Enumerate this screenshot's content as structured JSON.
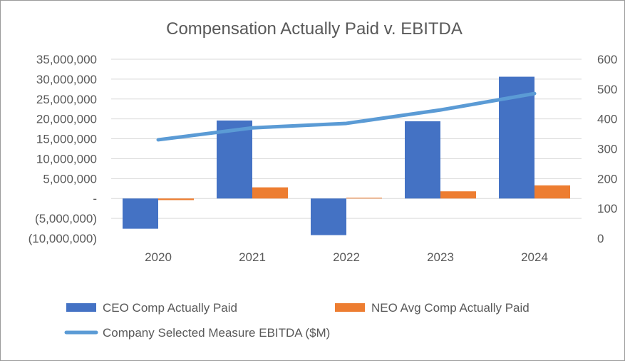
{
  "chart_data": {
    "type": "bar",
    "title": "Compensation Actually Paid v. EBITDA",
    "categories": [
      "2020",
      "2021",
      "2022",
      "2023",
      "2024"
    ],
    "series": [
      {
        "name": "CEO Comp Actually Paid",
        "type": "bar",
        "axis": "left",
        "color": "#4472C4",
        "values": [
          -7600000,
          19600000,
          -9200000,
          19400000,
          30600000
        ]
      },
      {
        "name": "NEO Avg Comp Actually Paid",
        "type": "bar",
        "axis": "left",
        "color": "#ED7D31",
        "values": [
          -400000,
          2800000,
          200000,
          1800000,
          3300000
        ]
      },
      {
        "name": "Company Selected Measure EBITDA ($M)",
        "type": "line",
        "axis": "right",
        "color": "#5B9BD5",
        "values": [
          330,
          370,
          385,
          430,
          485
        ]
      }
    ],
    "y_left": {
      "min": -10000000,
      "max": 35000000,
      "ticks": [
        35000000,
        30000000,
        25000000,
        20000000,
        15000000,
        10000000,
        5000000,
        0,
        -5000000,
        -10000000
      ],
      "tick_labels": [
        "35,000,000",
        "30,000,000",
        "25,000,000",
        "20,000,000",
        "15,000,000",
        "10,000,000",
        "5,000,000",
        "-",
        "(5,000,000)",
        "(10,000,000)"
      ]
    },
    "y_right": {
      "min": 0,
      "max": 600,
      "ticks": [
        600,
        500,
        400,
        300,
        200,
        100,
        0
      ],
      "tick_labels": [
        "600",
        "500",
        "400",
        "300",
        "200",
        "100",
        "0"
      ]
    },
    "grid": true,
    "legend": "bottom",
    "gridline_color": "#D9D9D9"
  }
}
